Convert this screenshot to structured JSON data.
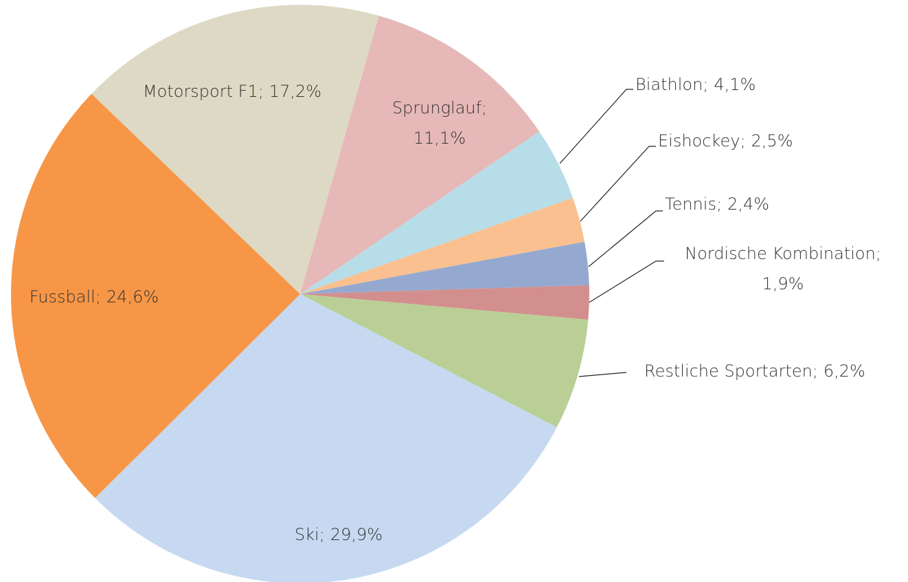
{
  "chart_data": {
    "type": "pie",
    "categories": [
      "Sprunglauf;",
      "Biathlon;",
      "Eishockey;",
      "Tennis;",
      "Nordische Kombination;",
      "Restliche Sportarten;",
      "Ski;",
      "Fussball;",
      "Motorsport F1;"
    ],
    "values": [
      11.1,
      4.1,
      2.5,
      2.4,
      1.9,
      6.2,
      29.9,
      24.6,
      17.2
    ],
    "value_labels": [
      "11,1%",
      "4,1%",
      "2,5%",
      "2,4%",
      "1,9%",
      "6,2%",
      "29,9%",
      "24,6%",
      "17,2%"
    ],
    "colors": [
      "#e6b8b7",
      "#b7dde8",
      "#fac090",
      "#95a9d0",
      "#d38f8d",
      "#b9cf96",
      "#c6d9f1",
      "#f79646",
      "#ddd9c4"
    ]
  }
}
